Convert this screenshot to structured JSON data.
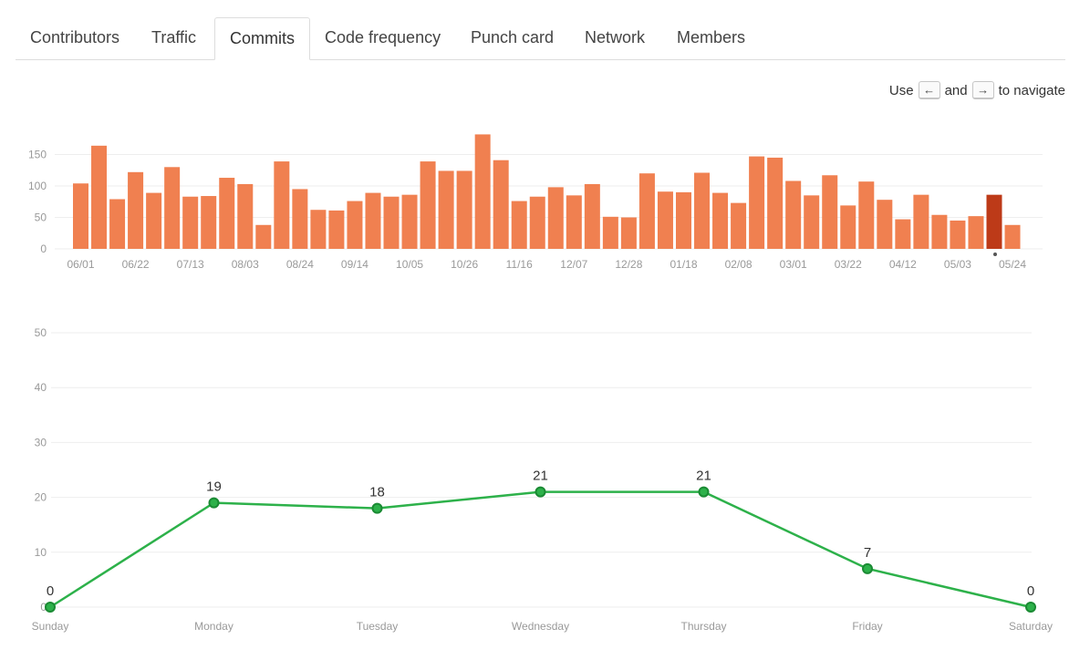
{
  "tabs": [
    {
      "label": "Contributors"
    },
    {
      "label": "Traffic"
    },
    {
      "label": "Commits",
      "selected": true
    },
    {
      "label": "Code frequency"
    },
    {
      "label": "Punch card"
    },
    {
      "label": "Network"
    },
    {
      "label": "Members"
    }
  ],
  "nav_hint": {
    "use": "Use",
    "left_key": "←",
    "and": "and",
    "right_key": "→",
    "to_navigate": "to navigate"
  },
  "colors": {
    "bar": "#f08050",
    "bar_selected": "#bd3a18",
    "line": "#2db14a"
  },
  "chart_data": [
    {
      "type": "bar",
      "title": "",
      "xlabel": "",
      "ylabel": "",
      "ylim": [
        0,
        180
      ],
      "yticks": [
        0,
        50,
        100,
        150
      ],
      "grid": true,
      "selected_index": 50,
      "tick_labels": [
        "06/01",
        "06/22",
        "07/13",
        "08/03",
        "08/24",
        "09/14",
        "10/05",
        "10/26",
        "11/16",
        "12/07",
        "12/28",
        "01/18",
        "02/08",
        "03/01",
        "03/22",
        "04/12",
        "05/03",
        "05/24"
      ],
      "tick_every": 3,
      "values": [
        104,
        164,
        79,
        122,
        89,
        130,
        83,
        84,
        113,
        103,
        38,
        139,
        95,
        62,
        61,
        76,
        89,
        83,
        86,
        139,
        124,
        124,
        182,
        141,
        76,
        83,
        98,
        85,
        103,
        51,
        50,
        120,
        91,
        90,
        121,
        89,
        73,
        147,
        145,
        108,
        85,
        117,
        69,
        107,
        78,
        47,
        86,
        54,
        45,
        52,
        86,
        38
      ]
    },
    {
      "type": "line",
      "title": "",
      "xlabel": "",
      "ylabel": "",
      "ylim": [
        0,
        50
      ],
      "yticks": [
        0,
        10,
        20,
        30,
        40,
        50
      ],
      "grid": true,
      "categories": [
        "Sunday",
        "Monday",
        "Tuesday",
        "Wednesday",
        "Thursday",
        "Friday",
        "Saturday"
      ],
      "values": [
        0,
        19,
        18,
        21,
        21,
        7,
        0
      ]
    }
  ]
}
